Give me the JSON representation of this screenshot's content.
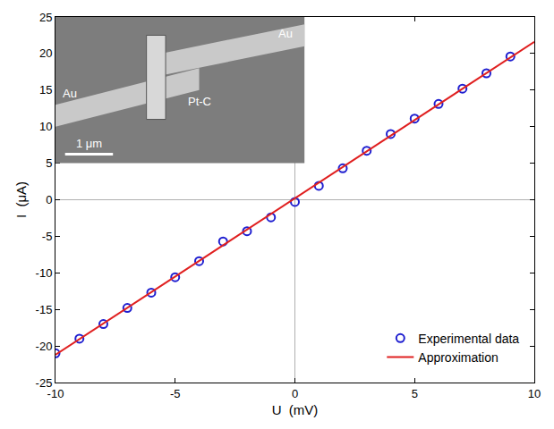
{
  "chart_data": {
    "type": "scatter",
    "x_label": "U  (mV)",
    "y_label": "I  (μA)",
    "xlim": [
      -10,
      10
    ],
    "xticks": [
      -10,
      -5,
      0,
      5,
      10
    ],
    "ylim": [
      -25,
      25
    ],
    "yticks": [
      -25,
      -20,
      -15,
      -10,
      -5,
      0,
      5,
      10,
      15,
      20,
      25
    ],
    "grid": false,
    "legend": "bottom right",
    "annotations": [
      "Au",
      "Au",
      "Pt-C",
      "1 μm"
    ],
    "series": [
      {
        "name": "Experimental data",
        "type": "scatter",
        "marker": "open circle",
        "color": "#1f1fd0",
        "x": [
          -10,
          -9,
          -8,
          -7,
          -6,
          -5,
          -4,
          -3,
          -2,
          -1,
          0,
          1,
          2,
          3,
          4,
          5,
          6,
          7,
          8,
          9
        ],
        "values": [
          -21,
          -19,
          -17,
          -14.8,
          -12.7,
          -10.6,
          -8.4,
          -5.7,
          -4.3,
          -2.4,
          -0.3,
          1.9,
          4.3,
          6.7,
          9.0,
          11.1,
          13.1,
          15.2,
          17.3,
          19.6
        ]
      },
      {
        "name": "Approximation",
        "type": "line",
        "line_style": "solid",
        "color": "#e02020",
        "x": [
          -10,
          10
        ],
        "values": [
          -21.2,
          21.6
        ]
      }
    ]
  }
}
